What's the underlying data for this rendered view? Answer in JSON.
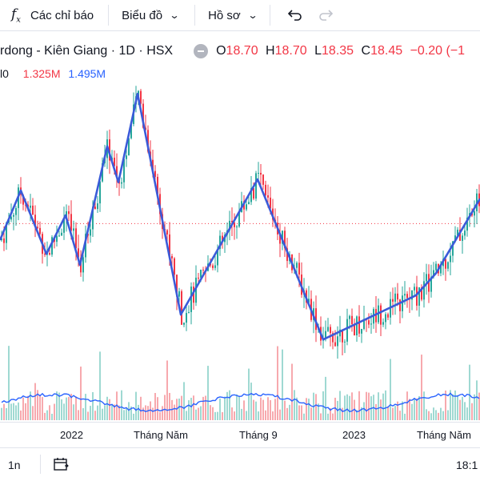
{
  "toolbar": {
    "indicators_label": "Các chỉ báo",
    "chart_label": "Biểu đồ",
    "profile_label": "Hồ sơ"
  },
  "symbol": {
    "title": "rdong - Kiên Giang · 1D · HSX",
    "open_key": "O",
    "open": "18.70",
    "high_key": "H",
    "high": "18.70",
    "low_key": "L",
    "low": "18.35",
    "close_key": "C",
    "close": "18.45",
    "change": "−0.20 (−1"
  },
  "volume": {
    "label": "l0",
    "value": "1.325M",
    "ma": "1.495M"
  },
  "axis": {
    "labels": [
      "2022",
      "Tháng Năm",
      "Tháng 9",
      "2023",
      "Tháng Năm"
    ]
  },
  "bottom": {
    "range": "1n",
    "time": "18:1"
  },
  "colors": {
    "up": "#26a69a",
    "down": "#f23645",
    "line": "#3a5bd9",
    "volume_ma": "#2962ff"
  },
  "chart_data": {
    "type": "candlestick",
    "zigzag_pivots": [
      {
        "x": 0.0,
        "y": 19.8
      },
      {
        "x": 26,
        "y": 21.6
      },
      {
        "x": 58,
        "y": 19.3
      },
      {
        "x": 82,
        "y": 20.7
      },
      {
        "x": 100,
        "y": 18.9
      },
      {
        "x": 134,
        "y": 23.2
      },
      {
        "x": 148,
        "y": 21.9
      },
      {
        "x": 172,
        "y": 25.1
      },
      {
        "x": 226,
        "y": 17.1
      },
      {
        "x": 322,
        "y": 22.0
      },
      {
        "x": 404,
        "y": 16.2
      },
      {
        "x": 520,
        "y": 17.8
      },
      {
        "x": 545,
        "y": 18.6
      },
      {
        "x": 600,
        "y": 21.3
      }
    ],
    "reference_level": 20.4,
    "x_ticks": [
      "2022",
      "Tháng Năm",
      "Tháng 9",
      "2023",
      "Tháng Năm"
    ]
  }
}
